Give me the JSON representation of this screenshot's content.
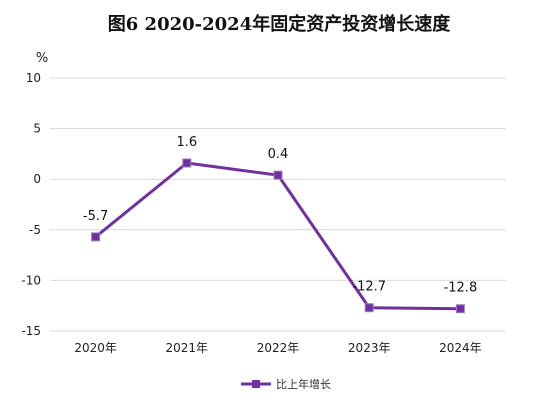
{
  "chart_data": {
    "type": "line",
    "title": "图6   2020-2024年固定资产投资增长速度",
    "ylabel": "%",
    "xlabel": "",
    "categories": [
      "2020年",
      "2021年",
      "2022年",
      "2023年",
      "2024年"
    ],
    "series": [
      {
        "name": "比上年增长",
        "values": [
          -5.7,
          1.6,
          0.4,
          -12.7,
          -12.8
        ],
        "labels": [
          "-5.7",
          "1.6",
          "0.4",
          "-12.7",
          "-12.8"
        ],
        "color": "#7030A0"
      }
    ],
    "ylim": [
      -15,
      10
    ],
    "yticks": [
      "10",
      "5",
      "0",
      "-5",
      "-10",
      "-15"
    ],
    "grid": true,
    "legend": "bottom-center"
  }
}
